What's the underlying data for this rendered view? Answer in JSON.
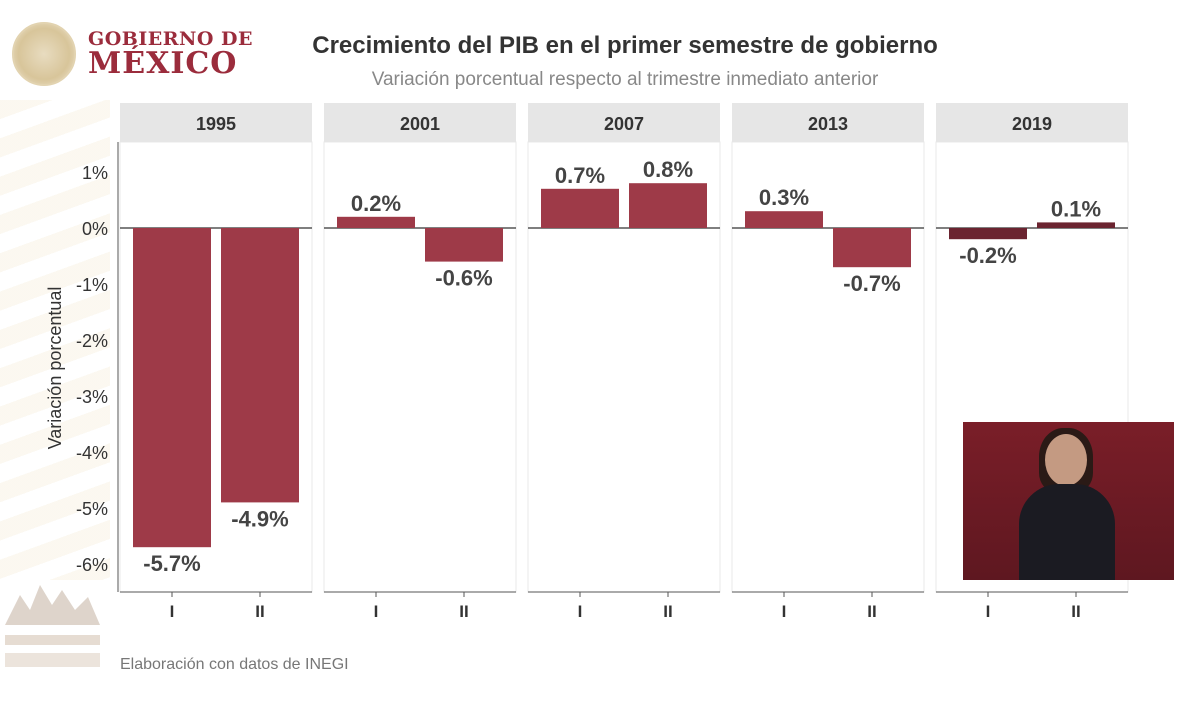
{
  "logo": {
    "line1": "GOBIERNO DE",
    "line2": "MÉXICO"
  },
  "header": {
    "title": "Crecimiento del PIB en el primer semestre de gobierno",
    "subtitle": "Variación porcentual respecto al trimestre inmediato anterior"
  },
  "caption": "Elaboración con datos de INEGI",
  "colors": {
    "bar": "#9e3a48",
    "bar_2019": "#6b2430",
    "strip": "#e6e6e6"
  },
  "chart_data": {
    "type": "bar",
    "title": "Crecimiento del PIB en el primer semestre de gobierno",
    "subtitle": "Variación porcentual respecto al trimestre inmediato anterior",
    "ylabel": "Variación porcentual",
    "xlabel": "",
    "ylim": [
      -6.5,
      1.6
    ],
    "yticks": [
      "1%",
      "0%",
      "-1%",
      "-2%",
      "-3%",
      "-4%",
      "-5%",
      "-6%"
    ],
    "ytick_values": [
      1,
      0,
      -1,
      -2,
      -3,
      -4,
      -5,
      -6
    ],
    "categories": [
      "I",
      "II"
    ],
    "grid": false,
    "facets": [
      {
        "label": "1995",
        "values": [
          -5.7,
          -4.9
        ],
        "labels": [
          "-5.7%",
          "-4.9%"
        ]
      },
      {
        "label": "2001",
        "values": [
          0.2,
          -0.6
        ],
        "labels": [
          "0.2%",
          "-0.6%"
        ]
      },
      {
        "label": "2007",
        "values": [
          0.7,
          0.8
        ],
        "labels": [
          "0.7%",
          "0.8%"
        ]
      },
      {
        "label": "2013",
        "values": [
          0.3,
          -0.7
        ],
        "labels": [
          "0.3%",
          "-0.7%"
        ]
      },
      {
        "label": "2019",
        "values": [
          -0.2,
          0.1
        ],
        "labels": [
          "-0.2%",
          "0.1%"
        ]
      }
    ]
  }
}
